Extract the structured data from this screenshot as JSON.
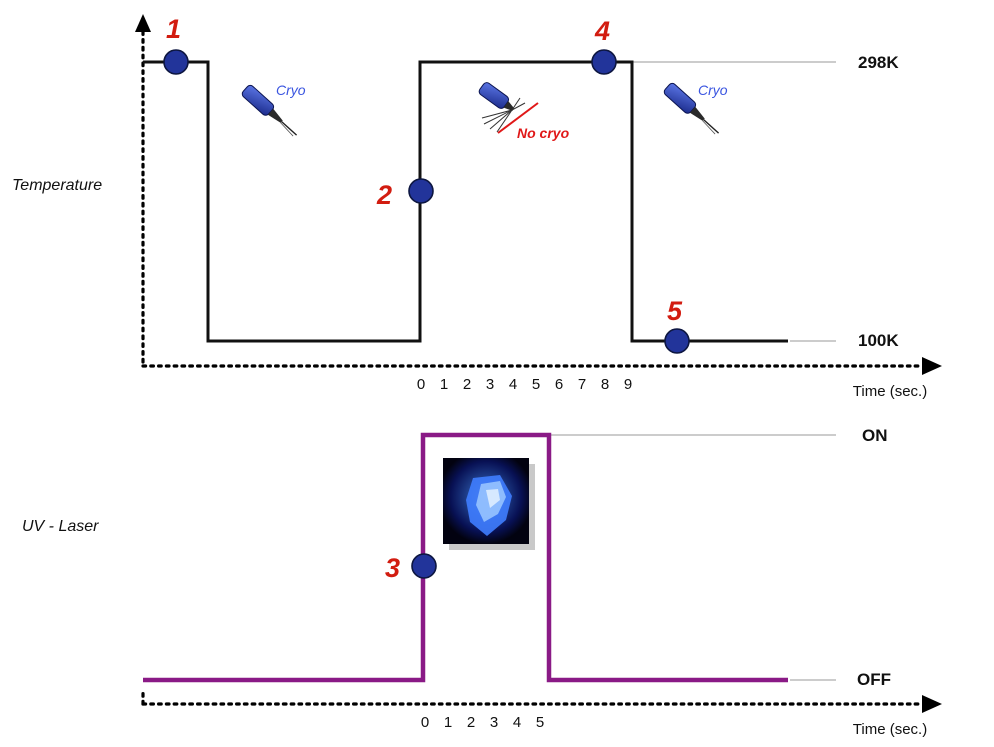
{
  "temperature_panel": {
    "ylabel": "Temperature",
    "levels": {
      "high": "298K",
      "low": "100K"
    },
    "xlabel": "Time (sec.)",
    "ticks": [
      "0",
      "1",
      "2",
      "3",
      "4",
      "5",
      "6",
      "7",
      "8",
      "9"
    ],
    "cryo_icons": [
      {
        "label": "Cryo",
        "state": "on"
      },
      {
        "label": "No cryo",
        "state": "off"
      },
      {
        "label": "Cryo",
        "state": "on"
      }
    ]
  },
  "laser_panel": {
    "ylabel": "UV - Laser",
    "levels": {
      "high": "ON",
      "low": "OFF"
    },
    "xlabel": "Time (sec.)",
    "ticks": [
      "0",
      "1",
      "2",
      "3",
      "4",
      "5"
    ]
  },
  "steps": [
    "1",
    "2",
    "3",
    "4",
    "5"
  ],
  "icons": {
    "cryo": "cryo-nozzle-icon",
    "crystal": "crystal-photo-icon"
  },
  "colors": {
    "temperature_trace": "#111111",
    "laser_trace": "#8a1a86",
    "marker": "#22349a",
    "step_number": "#d21c10",
    "cryo_label": "#3a55e0",
    "no_cryo_label": "#e01818"
  }
}
